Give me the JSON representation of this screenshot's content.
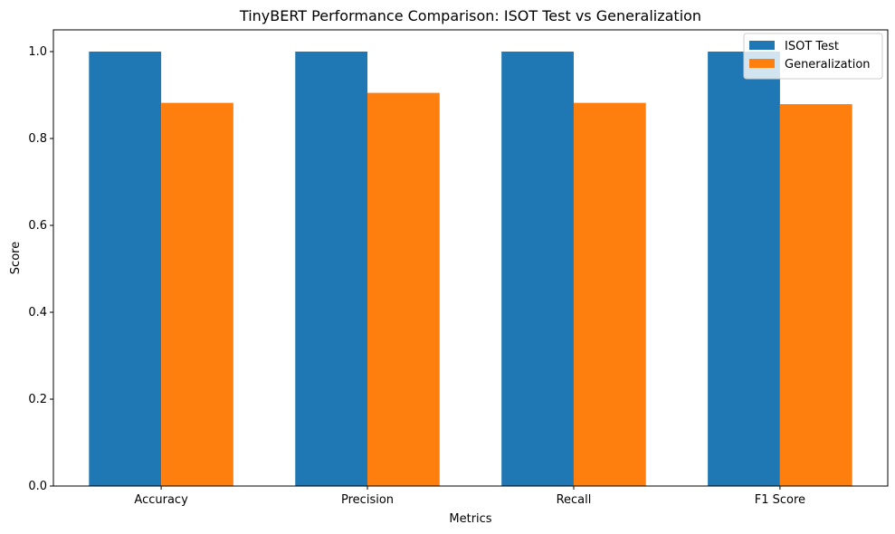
{
  "chart_data": {
    "type": "bar",
    "title": "TinyBERT Performance Comparison: ISOT Test vs Generalization",
    "xlabel": "Metrics",
    "ylabel": "Score",
    "categories": [
      "Accuracy",
      "Precision",
      "Recall",
      "F1 Score"
    ],
    "series": [
      {
        "name": "ISOT Test",
        "color": "#1f77b4",
        "values": [
          1.0,
          1.0,
          1.0,
          1.0
        ]
      },
      {
        "name": "Generalization",
        "color": "#ff7f0e",
        "values": [
          0.882,
          0.905,
          0.882,
          0.879
        ]
      }
    ],
    "ylim": [
      0,
      1.05
    ],
    "yticks": [
      "0.0",
      "0.2",
      "0.4",
      "0.6",
      "0.8",
      "1.0"
    ],
    "grid": false,
    "legend_position": "top-right"
  }
}
